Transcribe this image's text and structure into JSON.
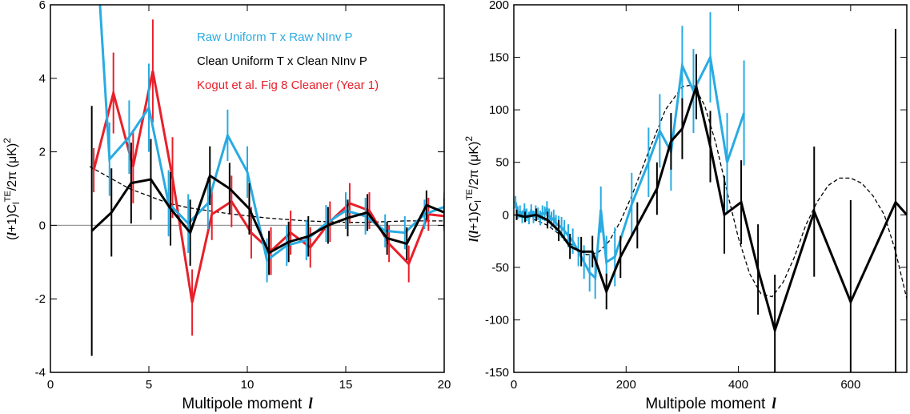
{
  "chart_data": [
    {
      "type": "line",
      "panel": "left",
      "xlabel": "Multipole moment",
      "xlabel_symbol": "l",
      "ylabel": "(l+1)C_l^TE/2π (μK)^2",
      "ylabel_parts": {
        "a": "(",
        "l": "l",
        "b": "+1)C",
        "sub": "l",
        "sup": "TE",
        "c": "/2π (μK)",
        "sq": "2"
      },
      "xlim": [
        0,
        20
      ],
      "ylim": [
        -4,
        6
      ],
      "xticks": [
        0,
        5,
        10,
        15,
        20
      ],
      "xtick_labels": [
        "0",
        "5",
        "10",
        "15",
        "20"
      ],
      "yticks": [
        -4,
        -2,
        0,
        2,
        4,
        6
      ],
      "ytick_labels": [
        "-4",
        "-2",
        "0",
        "2",
        "4",
        "6"
      ],
      "legend_position": "top-right",
      "series": [
        {
          "name": "Kogut et al. Fig 8 Cleaner (Year 1)",
          "color": "#e8202a",
          "x": [
            2.2,
            3.2,
            4.2,
            5.2,
            6.2,
            7.2,
            8.2,
            9.2,
            10.2,
            11.2,
            12.2,
            13.2,
            14.2,
            15.2,
            16.2,
            17.2,
            18.2,
            19.2,
            20.0
          ],
          "y": [
            1.5,
            3.6,
            1.6,
            4.2,
            1.3,
            -2.1,
            0.3,
            0.65,
            -0.2,
            -0.7,
            -0.2,
            -0.6,
            0.1,
            0.6,
            0.4,
            -0.5,
            -1.05,
            0.3,
            0.25
          ],
          "err": [
            0.6,
            1.1,
            1.0,
            1.4,
            1.1,
            0.9,
            0.7,
            0.7,
            0.7,
            0.65,
            0.6,
            0.55,
            0.55,
            0.55,
            0.5,
            0.5,
            0.5,
            0.45,
            0.4
          ]
        },
        {
          "name": "Raw Uniform T x Raw NInv P",
          "color": "#29abe2",
          "x": [
            2.0,
            3.0,
            4.0,
            5.0,
            6.0,
            7.0,
            8.0,
            9.0,
            10.0,
            11.0,
            12.0,
            13.0,
            14.0,
            15.0,
            16.0,
            17.0,
            18.0,
            19.0,
            20.0
          ],
          "y": [
            10.5,
            1.8,
            2.4,
            3.2,
            0.6,
            0.05,
            0.6,
            2.45,
            1.45,
            -0.95,
            -0.55,
            -0.4,
            0.05,
            0.4,
            0.25,
            -0.15,
            -0.2,
            0.3,
            0.5
          ],
          "err": [
            0.0,
            1.0,
            1.0,
            1.2,
            0.9,
            0.8,
            0.7,
            0.7,
            0.7,
            0.6,
            0.55,
            0.55,
            0.5,
            0.5,
            0.5,
            0.45,
            0.45,
            0.4,
            0.4
          ]
        },
        {
          "name": "Clean Uniform T x Clean NInv P",
          "color": "#000000",
          "x": [
            2.1,
            3.1,
            4.1,
            5.1,
            6.1,
            7.1,
            8.1,
            9.1,
            10.1,
            11.1,
            12.1,
            13.1,
            14.1,
            15.1,
            16.1,
            17.1,
            18.1,
            19.1,
            20.0
          ],
          "y": [
            -0.15,
            0.35,
            1.15,
            1.25,
            0.45,
            -0.2,
            1.35,
            1.0,
            0.45,
            -0.75,
            -0.45,
            -0.3,
            0.0,
            0.2,
            0.35,
            -0.35,
            -0.5,
            0.55,
            0.35
          ],
          "err": [
            3.4,
            1.2,
            1.1,
            1.1,
            1.0,
            0.9,
            0.8,
            0.7,
            0.7,
            0.6,
            0.55,
            0.55,
            0.5,
            0.5,
            0.5,
            0.45,
            0.45,
            0.4,
            0.4
          ]
        }
      ],
      "model": {
        "style": "dashed",
        "x": [
          2,
          3,
          4,
          5,
          6,
          7,
          8,
          9,
          10,
          11,
          12,
          13,
          14,
          15,
          16,
          17,
          18,
          19,
          20
        ],
        "y": [
          1.6,
          1.3,
          1.0,
          0.8,
          0.6,
          0.48,
          0.4,
          0.32,
          0.26,
          0.2,
          0.16,
          0.12,
          0.1,
          0.08,
          0.08,
          0.1,
          0.12,
          0.12,
          0.12
        ]
      },
      "zero_line": true
    },
    {
      "type": "line",
      "panel": "right",
      "xlabel": "Multipole moment",
      "xlabel_symbol": "l",
      "ylabel": "l(l+1)C_l^TE/2π (μK)^2",
      "ylabel_parts": {
        "l0": "l",
        "a": "(",
        "l": "l",
        "b": "+1)C",
        "sub": "l",
        "sup": "TE",
        "c": "/2π (μK)",
        "sq": "2"
      },
      "xlim": [
        0,
        700
      ],
      "ylim": [
        -150,
        200
      ],
      "xticks": [
        0,
        200,
        400,
        600
      ],
      "xtick_labels": [
        "0",
        "200",
        "400",
        "600"
      ],
      "yticks": [
        -150,
        -100,
        -50,
        0,
        50,
        100,
        150,
        200
      ],
      "ytick_labels": [
        "-150",
        "-100",
        "-50",
        "0",
        "50",
        "100",
        "150",
        "200"
      ],
      "series": [
        {
          "name": "Raw Uniform T x Raw NInv P",
          "color": "#29abe2",
          "x": [
            3,
            7,
            11,
            15,
            19,
            23,
            27,
            31,
            35,
            39,
            43,
            47,
            51,
            55,
            59,
            63,
            67,
            71,
            75,
            80,
            85,
            90,
            97,
            105,
            115,
            125,
            135,
            145,
            155,
            165,
            180,
            210,
            240,
            260,
            280,
            300,
            320,
            350,
            380,
            410
          ],
          "y": [
            12,
            2,
            3,
            -2,
            5,
            0,
            -3,
            4,
            -2,
            3,
            1,
            -3,
            2,
            1,
            6,
            -1,
            -5,
            -3,
            -8,
            -10,
            -12,
            -15,
            -20,
            -25,
            -35,
            -45,
            -55,
            -60,
            5,
            -45,
            -40,
            10,
            50,
            80,
            60,
            142,
            118,
            150,
            50,
            97
          ],
          "err": [
            6,
            6,
            6,
            6,
            6,
            6,
            6,
            6,
            6,
            6,
            6,
            7,
            7,
            7,
            7,
            7,
            8,
            8,
            8,
            9,
            10,
            10,
            11,
            12,
            14,
            16,
            18,
            20,
            22,
            25,
            28,
            30,
            33,
            35,
            37,
            38,
            40,
            43,
            47,
            50
          ]
        },
        {
          "name": "Clean Uniform T x Clean NInv P",
          "color": "#000000",
          "x": [
            5,
            20,
            40,
            60,
            80,
            100,
            120,
            140,
            165,
            190,
            220,
            255,
            280,
            300,
            325,
            350,
            375,
            405,
            435,
            465,
            535,
            600,
            680,
            700
          ],
          "y": [
            0,
            -2,
            0,
            -5,
            -15,
            -30,
            -35,
            -35,
            -73,
            -40,
            -10,
            25,
            70,
            82,
            122,
            65,
            0,
            12,
            -52,
            -110,
            3,
            -83,
            12,
            0
          ],
          "err": [
            5,
            5,
            6,
            8,
            10,
            12,
            14,
            15,
            17,
            20,
            22,
            25,
            27,
            29,
            31,
            34,
            37,
            40,
            43,
            53,
            62,
            97,
            165,
            0
          ]
        }
      ],
      "model": {
        "style": "dashed",
        "x": [
          0,
          30,
          60,
          90,
          110,
          130,
          150,
          170,
          190,
          210,
          240,
          270,
          300,
          320,
          340,
          360,
          380,
          400,
          420,
          440,
          460,
          480,
          500,
          520,
          540,
          560,
          580,
          600,
          620,
          640,
          660,
          680,
          700
        ],
        "y": [
          0,
          -3,
          -10,
          -22,
          -32,
          -38,
          -36,
          -25,
          -6,
          18,
          60,
          100,
          122,
          124,
          104,
          68,
          22,
          -22,
          -56,
          -75,
          -78,
          -64,
          -40,
          -10,
          12,
          28,
          35,
          35,
          30,
          18,
          0,
          -35,
          -80
        ]
      },
      "zero_line": false
    }
  ]
}
